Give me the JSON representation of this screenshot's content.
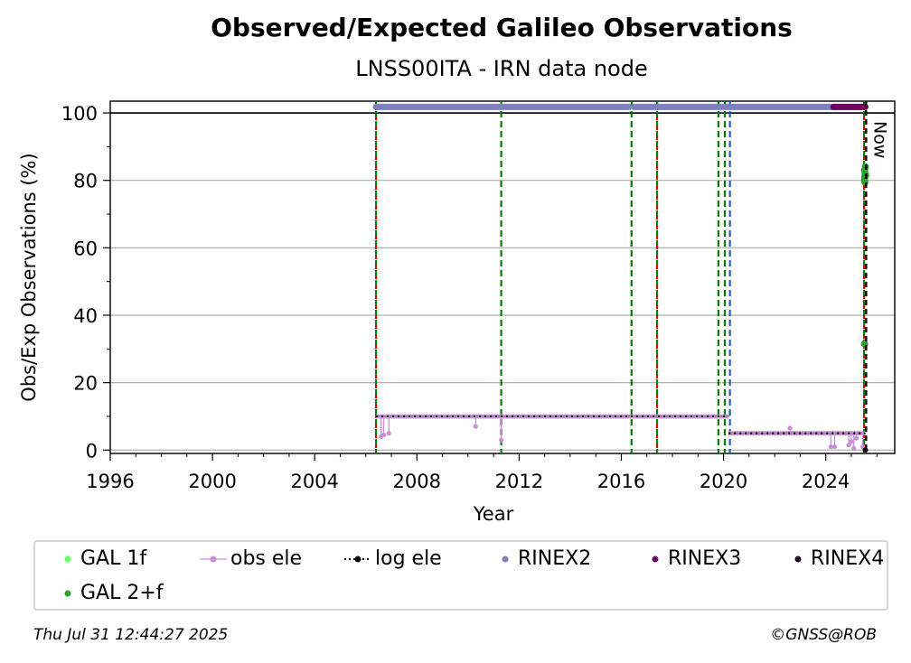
{
  "title": "Observed/Expected Galileo Observations",
  "subtitle": "LNSS00ITA - IRN data node",
  "footer": {
    "timestamp": "Thu Jul 31 12:44:27 2025",
    "credit": "©GNSS@ROB"
  },
  "colors": {
    "gal1f": "#66ff66",
    "gal2f": "#2ca02c",
    "obs_ele": "#c88fd6",
    "log_ele": "#000000",
    "rinex2": "#7f7fc4",
    "rinex3": "#6b005e",
    "rinex4": "#1a001a",
    "event_red": "#e00000",
    "event_green": "#007f00",
    "event_blue": "#1f5fbf"
  },
  "chart_data": {
    "type": "scatter",
    "xlabel": "Year",
    "ylabel": "Obs/Exp Observations (%)",
    "xlim": [
      1996,
      2026.7
    ],
    "ylim": [
      -1,
      103.5
    ],
    "xticks": [
      1996,
      2000,
      2004,
      2008,
      2012,
      2016,
      2020,
      2024
    ],
    "yticks": [
      0,
      20,
      40,
      60,
      80,
      100
    ],
    "grid": "horizontal",
    "now_label": "Now",
    "now_x": 2025.58,
    "legend": [
      {
        "key": "gal1f",
        "label": "GAL 1f",
        "marker": "dot"
      },
      {
        "key": "obs_ele",
        "label": "obs ele",
        "marker": "line-dot"
      },
      {
        "key": "log_ele",
        "label": "log ele",
        "marker": "dotted-line"
      },
      {
        "key": "rinex2",
        "label": "RINEX2",
        "marker": "dot"
      },
      {
        "key": "rinex3",
        "label": "RINEX3",
        "marker": "dot"
      },
      {
        "key": "rinex4",
        "label": "RINEX4",
        "marker": "dot"
      },
      {
        "key": "gal2f",
        "label": "GAL 2+f",
        "marker": "dot"
      }
    ],
    "event_lines": [
      {
        "x": 2006.4,
        "colors": [
          "event_green",
          "event_red"
        ]
      },
      {
        "x": 2011.3,
        "colors": [
          "event_green"
        ]
      },
      {
        "x": 2016.4,
        "colors": [
          "event_green"
        ]
      },
      {
        "x": 2017.4,
        "colors": [
          "event_green",
          "event_red"
        ]
      },
      {
        "x": 2019.8,
        "colors": [
          "event_green"
        ]
      },
      {
        "x": 2020.05,
        "colors": [
          "event_green"
        ]
      },
      {
        "x": 2020.25,
        "colors": [
          "event_blue"
        ]
      },
      {
        "x": 2025.5,
        "colors": [
          "event_green",
          "event_red"
        ]
      }
    ],
    "series": [
      {
        "name": "RINEX2",
        "key": "rinex2",
        "y": 101.8,
        "segments": [
          [
            2006.4,
            2016.3
          ],
          [
            2016.5,
            2024.3
          ]
        ]
      },
      {
        "name": "RINEX3",
        "key": "rinex3",
        "y": 101.8,
        "segments": [
          [
            2024.3,
            2025.55
          ]
        ]
      },
      {
        "name": "log ele",
        "key": "log_ele",
        "steps": [
          [
            2006.4,
            2020.2,
            10
          ],
          [
            2020.2,
            2025.55,
            5
          ]
        ]
      },
      {
        "name": "obs ele",
        "key": "obs_ele",
        "base": [
          [
            2006.4,
            2020.2,
            10
          ],
          [
            2020.2,
            2025.55,
            5
          ]
        ],
        "dips": [
          [
            2006.6,
            4
          ],
          [
            2006.7,
            4.5
          ],
          [
            2006.9,
            5
          ],
          [
            2010.3,
            7
          ],
          [
            2011.3,
            3
          ],
          [
            2022.6,
            6.5
          ],
          [
            2024.2,
            1
          ],
          [
            2024.35,
            1
          ],
          [
            2024.9,
            1.5
          ],
          [
            2025.0,
            2.5
          ],
          [
            2025.1,
            0.5
          ],
          [
            2025.2,
            3.5
          ],
          [
            2025.45,
            1
          ]
        ]
      },
      {
        "name": "GAL 2+f",
        "key": "gal2f",
        "points": [
          [
            2025.52,
            31.5
          ],
          [
            2025.52,
            80
          ],
          [
            2025.53,
            81
          ],
          [
            2025.54,
            82
          ],
          [
            2025.52,
            83
          ],
          [
            2025.55,
            84
          ],
          [
            2025.56,
            81.5
          ],
          [
            2025.53,
            79.5
          ]
        ]
      },
      {
        "name": "RINEX4",
        "key": "rinex4",
        "points": [
          [
            2025.55,
            0
          ]
        ]
      }
    ]
  }
}
